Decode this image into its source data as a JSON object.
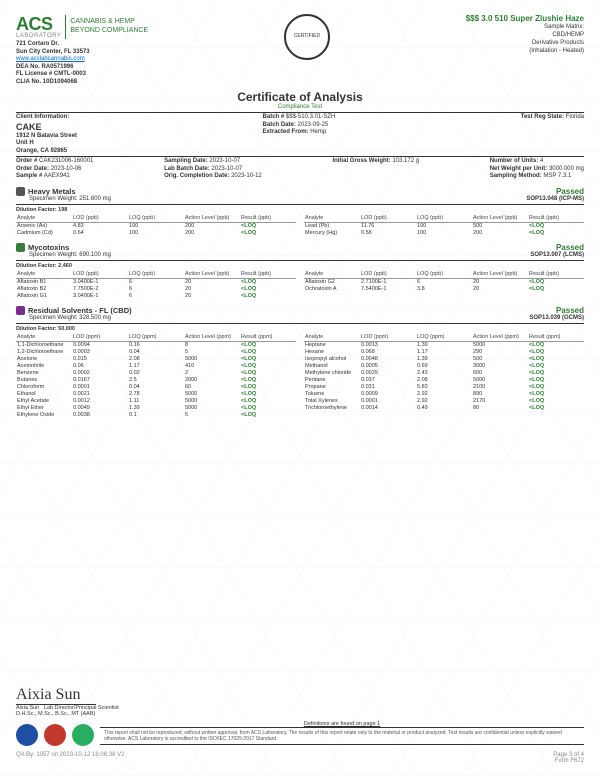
{
  "logo": {
    "brand": "ACS",
    "brand_sub": "LABORATORY",
    "tag1": "CANNABIS & HEMP",
    "tag2": "BEYOND COMPLIANCE"
  },
  "lab": {
    "addr1": "721 Cortaro Dr.",
    "addr2": "Sun City Center, FL 33573",
    "url": "www.acslabcannabis.com",
    "dea": "DEA No. RA0571996",
    "lic": "FL License # CMTL-0003",
    "clia": "CLIA No. 10D1094068"
  },
  "product": {
    "name": "$$$ 3.0 510 Super Zlushie Haze",
    "matrix_lbl": "Sample Matrix:",
    "matrix": "CBD/HEMP",
    "type": "Derivative Products",
    "method": "(Inhalation - Heated)"
  },
  "coa": {
    "title": "Certificate of Analysis",
    "sub": "Compliance Test"
  },
  "client": {
    "info_lbl": "Client Information:",
    "name": "CAKE",
    "addr1": "1912 N Batavia Street",
    "addr2": "Unit H",
    "addr3": "Orange, CA 92865"
  },
  "batch": {
    "batch_lbl": "Batch #",
    "batch": "$$$-510.3.01-SZH",
    "bdate_lbl": "Batch Date:",
    "bdate": "2023-09-25",
    "extract_lbl": "Extracted From:",
    "extract": "Hemp",
    "state_lbl": "Test Reg State:",
    "state": "Florida"
  },
  "order": {
    "order_lbl": "Order #",
    "order": "CAK231006-160001",
    "odate_lbl": "Order Date:",
    "odate": "2023-10-06",
    "sample_lbl": "Sample #",
    "sample": "AAEX941",
    "sdate_lbl": "Sampling Date:",
    "sdate": "2023-10-07",
    "ldate_lbl": "Lab Batch Date:",
    "ldate": "2023-10-07",
    "cdate_lbl": "Orig. Completion Date:",
    "cdate": "2023-10-12",
    "gross_lbl": "Initial Gross Weight:",
    "gross": "103.172 g",
    "units_lbl": "Number of Units:",
    "units": "4",
    "netwt_lbl": "Net Weight per Unit:",
    "netwt": "3000.000 mg",
    "smethod_lbl": "Sampling Method:",
    "smethod": "MSP 7.3.1"
  },
  "sections": {
    "hm": {
      "title": "Heavy Metals",
      "spec": "Specimen Weight: 251.600 mg",
      "dil": "Dilution Factor: 198",
      "pass": "Passed",
      "sop": "SOP13.048 (ICP-MS)",
      "cols": [
        "Analyte",
        "LOD (ppb)",
        "LOQ (ppb)",
        "Action Level (ppb)",
        "Result (ppb)"
      ],
      "rows_l": [
        [
          "Arsenic (As)",
          "4.83",
          "100",
          "200",
          "<LOQ"
        ],
        [
          "Cadmium (Cd)",
          "0.64",
          "100",
          "200",
          "<LOQ"
        ]
      ],
      "rows_r": [
        [
          "Lead (Pb)",
          "11.76",
          "100",
          "500",
          "<LOQ"
        ],
        [
          "Mercury (Hg)",
          "0.58",
          "100",
          "200",
          "<LOQ"
        ]
      ]
    },
    "myco": {
      "title": "Mycotoxins",
      "spec": "Specimen Weight: 690.100 mg",
      "dil": "Dilution Factor: 2.460",
      "pass": "Passed",
      "sop": "SOP13.007 (LCMS)",
      "cols": [
        "Analyte",
        "LOD (ppb)",
        "LOQ (ppb)",
        "Action Level (ppb)",
        "Result (ppb)"
      ],
      "rows_l": [
        [
          "Aflatoxin B1",
          "3.0400E-1",
          "6",
          "20",
          "<LOQ"
        ],
        [
          "Aflatoxin B2",
          "7.7500E-2",
          "6",
          "20",
          "<LOQ"
        ],
        [
          "Aflatoxin G1",
          "3.0400E-1",
          "6",
          "20",
          "<LOQ"
        ]
      ],
      "rows_r": [
        [
          "Aflatoxin G2",
          "2.7100E-1",
          "6",
          "20",
          "<LOQ"
        ],
        [
          "Ochratoxin A",
          "7.5400E-1",
          "3.8",
          "20",
          "<LOQ"
        ]
      ]
    },
    "solv": {
      "title": "Residual Solvents - FL (CBD)",
      "spec": "Specimen Weight: 328.500 mg",
      "dil": "Dilution Factor: 50.000",
      "pass": "Passed",
      "sop": "SOP13.039 (GCMS)",
      "cols": [
        "Analyte",
        "LOD (ppm)",
        "LOQ (ppm)",
        "Action Level (ppm)",
        "Result (ppm)"
      ],
      "rows_l": [
        [
          "1,1-Dichloroethane",
          "0.0094",
          "0.16",
          "8",
          "<LOQ"
        ],
        [
          "1,2-Dichloroethane",
          "0.0003",
          "0.04",
          "5",
          "<LOQ"
        ],
        [
          "Acetone",
          "0.015",
          "2.08",
          "5000",
          "<LOQ"
        ],
        [
          "Acetonitrile",
          "0.06",
          "1.17",
          "410",
          "<LOQ"
        ],
        [
          "Benzene",
          "0.0002",
          "0.02",
          "2",
          "<LOQ"
        ],
        [
          "Butanes",
          "0.0167",
          "2.5",
          "2000",
          "<LOQ"
        ],
        [
          "Chloroform",
          "0.0001",
          "0.04",
          "60",
          "<LOQ"
        ],
        [
          "Ethanol",
          "0.0021",
          "2.78",
          "5000",
          "<LOQ"
        ],
        [
          "Ethyl Acetate",
          "0.0012",
          "1.11",
          "5000",
          "<LOQ"
        ],
        [
          "Ethyl Ether",
          "0.0049",
          "1.39",
          "5000",
          "<LOQ"
        ],
        [
          "Ethylene Oxide",
          "0.0038",
          "0.1",
          "5",
          "<LOQ"
        ]
      ],
      "rows_r": [
        [
          "Heptane",
          "0.0013",
          "1.39",
          "5000",
          "<LOQ"
        ],
        [
          "Hexane",
          "0.068",
          "1.17",
          "290",
          "<LOQ"
        ],
        [
          "Isopropyl alcohol",
          "0.0048",
          "1.39",
          "500",
          "<LOQ"
        ],
        [
          "Methanol",
          "0.0005",
          "0.69",
          "3000",
          "<LOQ"
        ],
        [
          "Methylene chloride",
          "0.0029",
          "2.43",
          "600",
          "<LOQ"
        ],
        [
          "Pentane",
          "0.037",
          "2.08",
          "5000",
          "<LOQ"
        ],
        [
          "Propane",
          "0.031",
          "5.83",
          "2100",
          "<LOQ"
        ],
        [
          "Toluene",
          "0.0009",
          "2.92",
          "890",
          "<LOQ"
        ],
        [
          "Total Xylenes",
          "0.0001",
          "2.92",
          "2170",
          "<LOQ"
        ],
        [
          "Trichloroethylene",
          "0.0014",
          "0.49",
          "80",
          "<LOQ"
        ]
      ]
    }
  },
  "footer": {
    "sig_name": "Aixia Sun",
    "sig_title": "Lab Director/Principal Scientist",
    "sig_cred": "D.H.Sc., M.Sc., B.Sc., MT (AAB)",
    "def": "Definitions are found on page 1",
    "disclaimer": "This report shall not be reproduced, without written approval, from ACS Laboratory. The results of this report relate only to the material or product analyzed. Test results are confidential unless explicitly waived otherwise. ACS Laboratory is accredited to the ISO/IEC 17025:2017 Standard.",
    "qa": "QA By: 1057 on 2023-10-12 16:06:38 V2",
    "page": "Page 3 of 4",
    "form": "Form F672"
  },
  "colors": {
    "brand": "#2e7d32",
    "accred1": "#1e4fa3",
    "accred2": "#c0392b",
    "accred3": "#27ae60"
  }
}
